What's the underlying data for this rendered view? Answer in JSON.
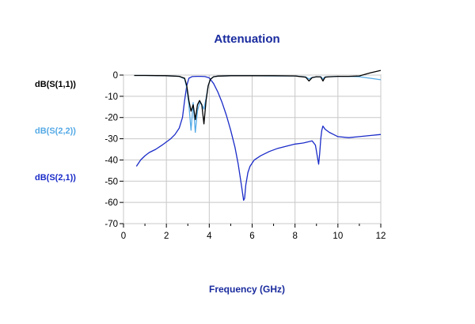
{
  "chart_data": {
    "type": "line",
    "title": "Attenuation",
    "xlabel": "Frequency (GHz)",
    "ylabel": "",
    "xlim": [
      0,
      12
    ],
    "ylim": [
      -70,
      0
    ],
    "x_ticks": [
      0,
      2,
      4,
      6,
      8,
      10,
      12
    ],
    "y_ticks": [
      0,
      -10,
      -20,
      -30,
      -40,
      -50,
      -60,
      -70
    ],
    "grid": true,
    "legend": "left",
    "title_color": "#1a2b9e",
    "xlabel_color": "#1a2b9e",
    "series": [
      {
        "name": "dB(S(1,1))",
        "color": "#000000",
        "x": [
          0.5,
          1.0,
          2.0,
          2.6,
          2.85,
          2.95,
          3.05,
          3.15,
          3.25,
          3.35,
          3.45,
          3.55,
          3.65,
          3.75,
          3.85,
          3.95,
          4.05,
          4.2,
          4.4,
          5.0,
          6.0,
          7.0,
          8.0,
          8.5,
          8.65,
          8.8,
          9.0,
          9.2,
          9.3,
          9.4,
          9.6,
          10.0,
          10.5,
          11.0,
          11.5,
          12.0
        ],
        "y": [
          -0.2,
          -0.2,
          -0.3,
          -0.6,
          -1.5,
          -5,
          -12,
          -17,
          -14,
          -21,
          -14,
          -12,
          -14,
          -23,
          -12,
          -5,
          -2,
          -0.8,
          -0.5,
          -0.3,
          -0.3,
          -0.3,
          -0.4,
          -1.0,
          -2.8,
          -1.2,
          -0.8,
          -0.9,
          -2.8,
          -1.0,
          -0.8,
          -0.6,
          -0.6,
          -0.4,
          1.0,
          2.2
        ]
      },
      {
        "name": "dB(S(2,2))",
        "color": "#55aae6",
        "x": [
          0.5,
          1.0,
          2.0,
          2.6,
          2.85,
          2.95,
          3.05,
          3.15,
          3.25,
          3.35,
          3.45,
          3.55,
          3.65,
          3.75,
          3.85,
          3.95,
          4.05,
          4.2,
          4.4,
          5.0,
          6.0,
          7.0,
          8.0,
          8.5,
          8.65,
          8.8,
          9.0,
          9.2,
          9.3,
          9.4,
          9.6,
          10.0,
          10.5,
          11.0,
          11.5,
          12.0
        ],
        "y": [
          -0.2,
          -0.2,
          -0.3,
          -0.6,
          -1.8,
          -6,
          -14,
          -26,
          -13,
          -27,
          -17,
          -13,
          -14,
          -16,
          -11,
          -5,
          -2,
          -0.8,
          -0.5,
          -0.3,
          -0.3,
          -0.4,
          -0.4,
          -0.9,
          -1.8,
          -1.1,
          -0.8,
          -0.8,
          -1.8,
          -0.9,
          -0.8,
          -0.6,
          -0.6,
          -0.8,
          -1.5,
          -2.2
        ]
      },
      {
        "name": "dB(S(2,1))",
        "color": "#1a2bc8",
        "x": [
          0.6,
          0.8,
          1.0,
          1.2,
          1.5,
          1.8,
          2.0,
          2.2,
          2.4,
          2.6,
          2.75,
          2.85,
          2.95,
          3.05,
          3.2,
          3.4,
          3.6,
          3.8,
          4.0,
          4.2,
          4.4,
          4.6,
          4.8,
          5.0,
          5.2,
          5.35,
          5.5,
          5.6,
          5.65,
          5.7,
          5.8,
          5.9,
          6.1,
          6.4,
          6.8,
          7.2,
          7.6,
          8.0,
          8.4,
          8.8,
          8.95,
          9.0,
          9.05,
          9.1,
          9.15,
          9.2,
          9.25,
          9.3,
          9.4,
          9.6,
          9.8,
          10.0,
          10.5,
          11.0,
          11.5,
          12.0
        ],
        "y": [
          -43,
          -40,
          -38,
          -36.5,
          -35,
          -33,
          -31.5,
          -30,
          -28,
          -25,
          -20,
          -12,
          -5,
          -1.5,
          -0.7,
          -0.6,
          -0.6,
          -0.7,
          -1.3,
          -4,
          -8,
          -13,
          -19,
          -26,
          -34,
          -42,
          -52,
          -59,
          -58,
          -52,
          -46,
          -43,
          -40,
          -38,
          -36,
          -34.5,
          -33.5,
          -32.5,
          -32,
          -31,
          -33,
          -36,
          -39,
          -42,
          -37,
          -30,
          -26,
          -24,
          -25.5,
          -27,
          -28,
          -29,
          -29.5,
          -29,
          -28.5,
          -28
        ]
      }
    ]
  }
}
